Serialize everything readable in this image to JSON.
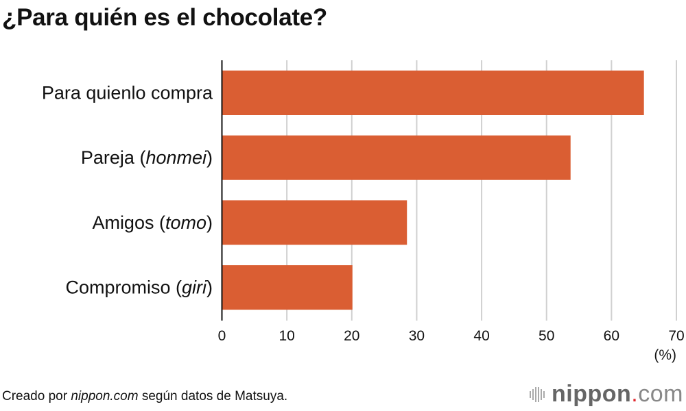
{
  "chart_data": {
    "type": "bar",
    "orientation": "horizontal",
    "title": "¿Para quién es el chocolate?",
    "categories": [
      {
        "label": "Para quienlo compra",
        "italic": ""
      },
      {
        "label": "Pareja (",
        "italic": "honmei",
        "suffix": ")"
      },
      {
        "label": "Amigos (",
        "italic": "tomo",
        "suffix": ")"
      },
      {
        "label": "Compromiso (",
        "italic": "giri",
        "suffix": ")"
      }
    ],
    "values": [
      65,
      53.7,
      28.5,
      20.1
    ],
    "xlim": [
      0,
      70
    ],
    "xticks": [
      "0",
      "10",
      "20",
      "30",
      "40",
      "50",
      "60",
      "70"
    ],
    "xunit": "(%)",
    "grid": true,
    "bar_color": "#da5e33",
    "grid_color": "#d0d0d0"
  },
  "footer": {
    "source_prefix": "Creado por ",
    "source_site": "nippon.com",
    "source_suffix": " según datos de Matsuya.",
    "logo": {
      "name": "nippon",
      "dot": ".",
      "tld": "com"
    }
  }
}
